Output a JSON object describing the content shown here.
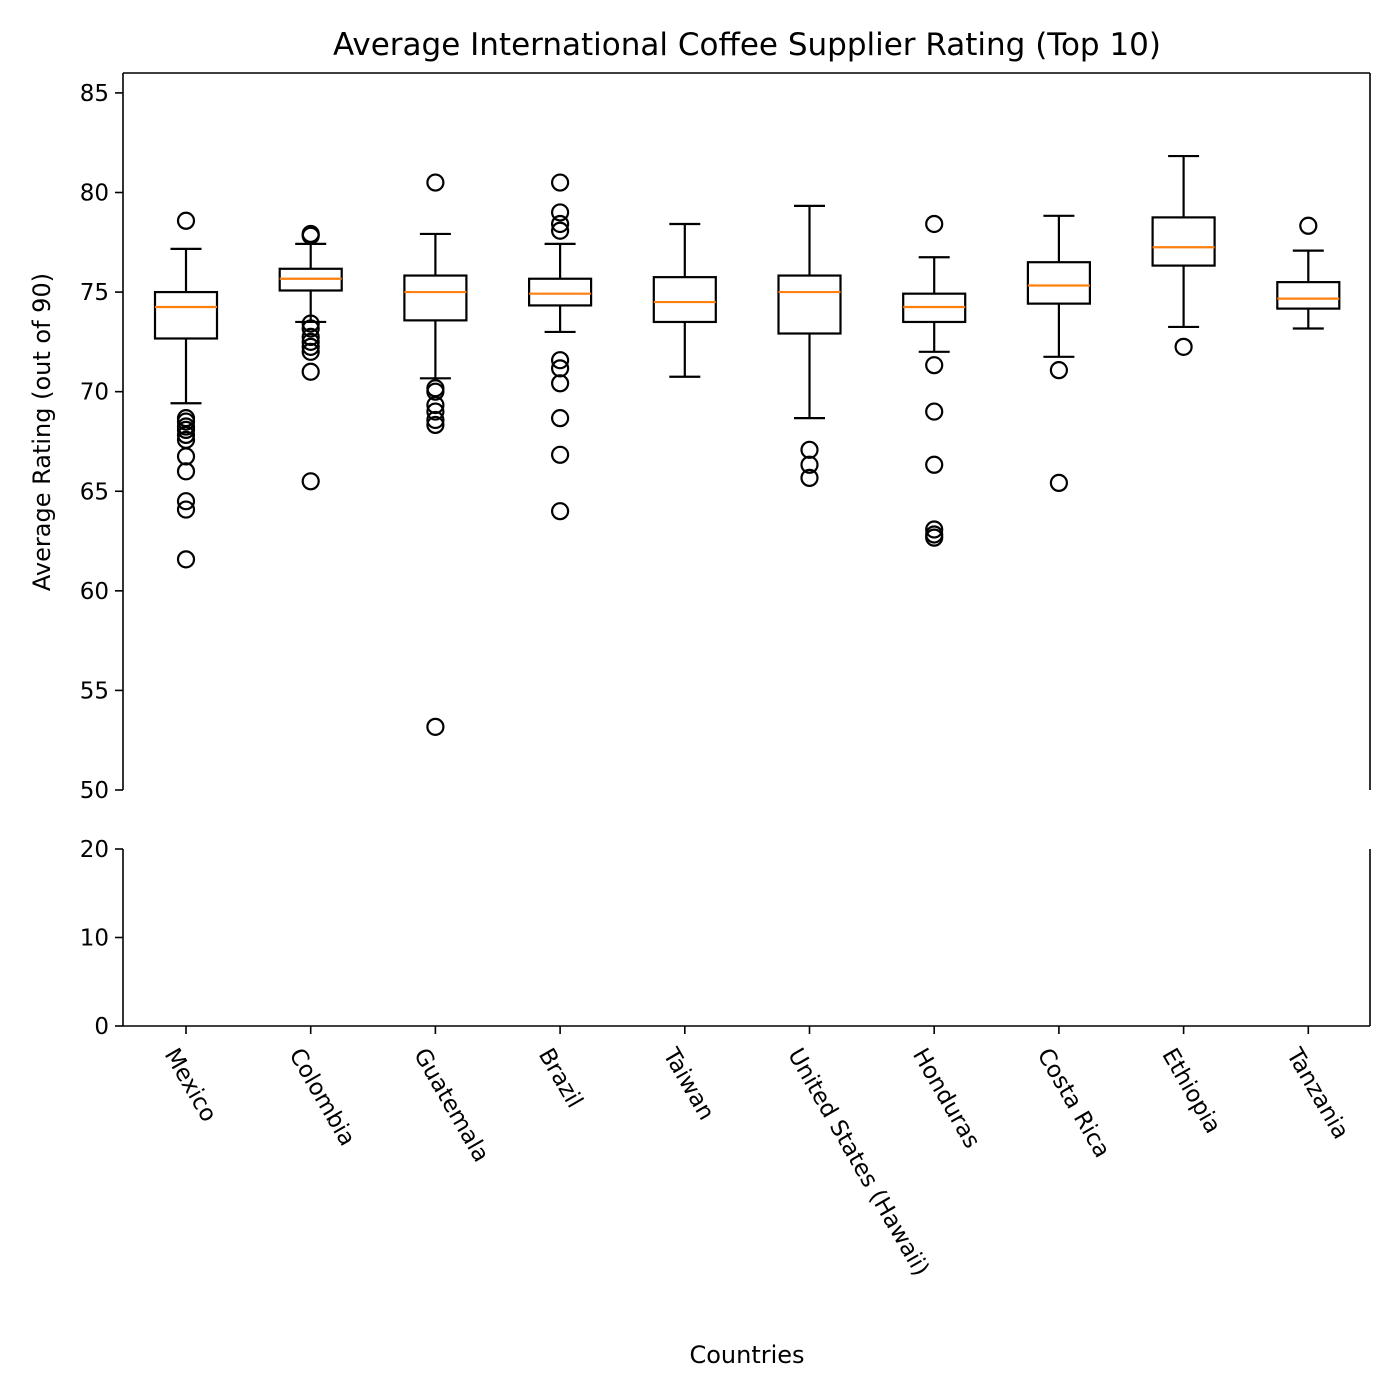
{
  "chart_data": {
    "type": "box",
    "title": "Average International Coffee Supplier Rating (Top 10)",
    "xlabel": "Countries",
    "ylabel": "Average Rating (out of 90)",
    "broken_y_axis": true,
    "upper_ylim": [
      50,
      86
    ],
    "lower_ylim": [
      0,
      20
    ],
    "upper_yticks": [
      50,
      55,
      60,
      65,
      70,
      75,
      80,
      85
    ],
    "lower_yticks": [
      0,
      10,
      20
    ],
    "categories": [
      "Mexico",
      "Colombia",
      "Guatemala",
      "Brazil",
      "Taiwan",
      "United States (Hawaii)",
      "Honduras",
      "Costa Rica",
      "Ethiopia",
      "Tanzania"
    ],
    "boxes": [
      {
        "q1": 72.67,
        "median": 74.25,
        "q3": 75.0,
        "whisker_low": 69.42,
        "whisker_high": 77.17,
        "outliers": [
          78.58,
          68.67,
          68.5,
          68.25,
          68.08,
          67.83,
          67.58,
          66.75,
          66.0,
          64.5,
          64.08,
          61.58
        ]
      },
      {
        "q1": 75.08,
        "median": 75.67,
        "q3": 76.17,
        "whisker_low": 73.5,
        "whisker_high": 77.42,
        "outliers": [
          77.92,
          77.83,
          73.42,
          73.17,
          72.75,
          72.5,
          72.25,
          72.0,
          71.0,
          65.5
        ]
      },
      {
        "q1": 73.58,
        "median": 75.0,
        "q3": 75.83,
        "whisker_low": 70.67,
        "whisker_high": 77.92,
        "outliers": [
          80.5,
          70.17,
          70.0,
          69.33,
          69.0,
          68.58,
          68.33,
          53.17
        ]
      },
      {
        "q1": 74.33,
        "median": 74.92,
        "q3": 75.67,
        "whisker_low": 73.0,
        "whisker_high": 77.42,
        "outliers": [
          80.5,
          79.0,
          78.42,
          78.08,
          71.58,
          71.17,
          70.42,
          68.67,
          66.83,
          64.0
        ]
      },
      {
        "q1": 73.5,
        "median": 74.5,
        "q3": 75.75,
        "whisker_low": 70.75,
        "whisker_high": 78.42,
        "outliers": []
      },
      {
        "q1": 72.92,
        "median": 75.0,
        "q3": 75.83,
        "whisker_low": 68.67,
        "whisker_high": 79.33,
        "outliers": [
          67.08,
          66.33,
          65.67
        ]
      },
      {
        "q1": 73.5,
        "median": 74.25,
        "q3": 74.92,
        "whisker_low": 72.0,
        "whisker_high": 76.75,
        "outliers": [
          78.42,
          71.33,
          69.0,
          66.33,
          63.08,
          62.83,
          62.67
        ]
      },
      {
        "q1": 74.42,
        "median": 75.33,
        "q3": 76.5,
        "whisker_low": 71.75,
        "whisker_high": 78.83,
        "outliers": [
          71.08,
          65.42
        ]
      },
      {
        "q1": 76.33,
        "median": 77.25,
        "q3": 78.75,
        "whisker_low": 73.25,
        "whisker_high": 81.83,
        "outliers": [
          72.25
        ]
      },
      {
        "q1": 74.17,
        "median": 74.67,
        "q3": 75.5,
        "whisker_low": 73.17,
        "whisker_high": 77.08,
        "outliers": [
          78.33
        ]
      }
    ],
    "colors": {
      "box": "#000000",
      "median": "#ff7f0e",
      "outlier": "#000000"
    }
  }
}
